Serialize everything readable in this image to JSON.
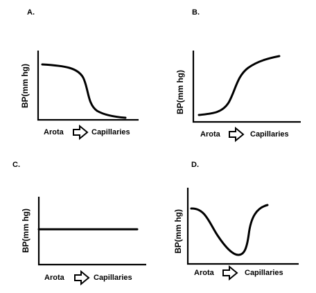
{
  "panels": [
    {
      "id": "A",
      "letter": "A.",
      "ylabel": "BP(mm hg)",
      "xlabel_from": "Arota",
      "xlabel_to": "Capillaries",
      "trend": "high plateau falling to low near capillaries"
    },
    {
      "id": "B",
      "letter": "B.",
      "ylabel": "BP(mm hg)",
      "xlabel_from": "Arota",
      "xlabel_to": "Capillaries",
      "trend": "low rising to high near capillaries"
    },
    {
      "id": "C",
      "letter": "C.",
      "ylabel": "BP(mm hg)",
      "xlabel_from": "Arota",
      "xlabel_to": "Capillaries",
      "trend": "constant"
    },
    {
      "id": "D",
      "letter": "D.",
      "ylabel": "BP(mm hg)",
      "xlabel_from": "Arota",
      "xlabel_to": "Capillaries",
      "trend": "falls to a minimum then rises again"
    }
  ]
}
